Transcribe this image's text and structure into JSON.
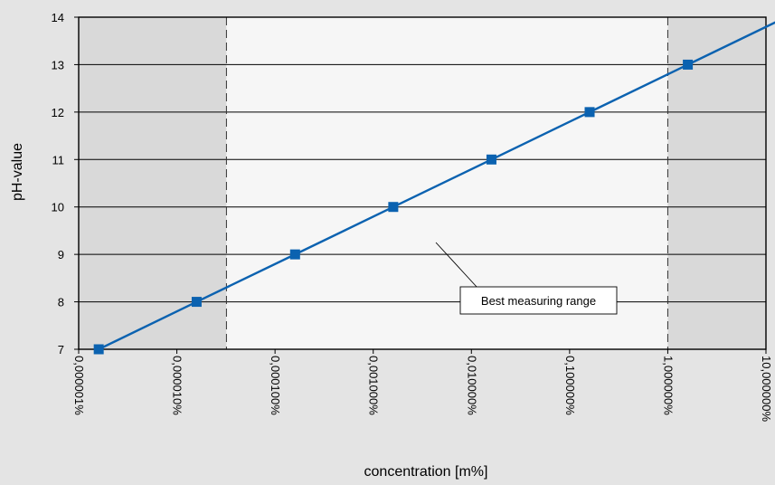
{
  "chart_data": {
    "type": "line",
    "xlabel": "concentration [m%]",
    "ylabel": "pH-value",
    "x_scale": "log",
    "xlim": [
      1e-06,
      10
    ],
    "ylim": [
      7,
      14
    ],
    "x_ticks": [
      1e-06,
      1e-05,
      0.0001,
      0.001,
      0.01,
      0.1,
      1,
      10
    ],
    "x_tick_labels": [
      "0,000001%",
      "0,000010%",
      "0,000100%",
      "0,001000%",
      "0,010000%",
      "0,100000%",
      "1,000000%",
      "10,000000%"
    ],
    "y_ticks": [
      7,
      8,
      9,
      10,
      11,
      12,
      13,
      14
    ],
    "y_tick_labels": [
      "7",
      "8",
      "9",
      "10",
      "11",
      "12",
      "13",
      "14"
    ],
    "grid": "horizontal",
    "series": [
      {
        "x": [
          1.6e-06,
          1.59e-05,
          0.00016,
          0.0016,
          0.016,
          0.16,
          1.6,
          16
        ],
        "y": [
          7,
          8,
          9,
          10,
          11,
          12,
          13,
          14
        ],
        "marker": "square",
        "color": "#0b62b0"
      }
    ],
    "best_range": [
      3.2e-05,
      1
    ],
    "annotation": "Best measuring range",
    "colors": {
      "shaded_region": "#d9d9d9",
      "best_region": "#f6f6f6",
      "background": "#e4e4e4",
      "line": "#0b62b0"
    }
  }
}
